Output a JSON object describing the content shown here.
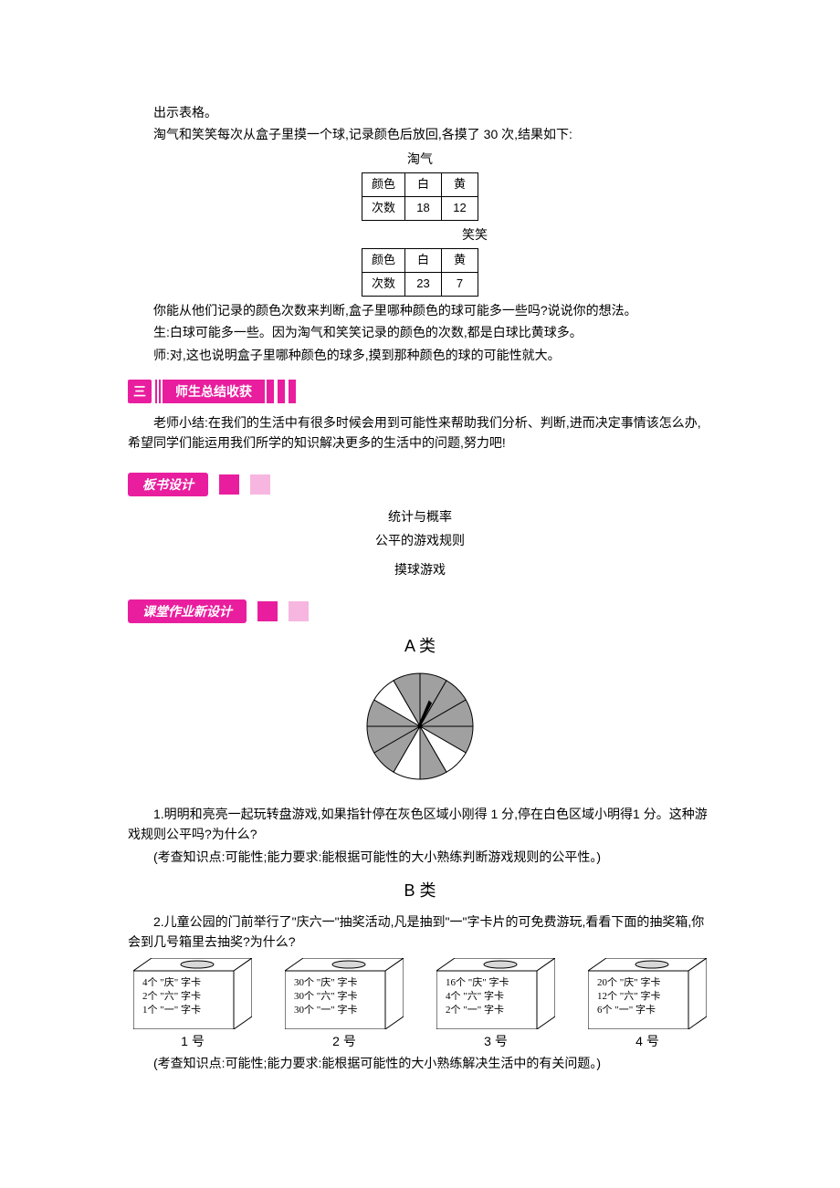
{
  "colors": {
    "accent": "#e91e9e",
    "accent_light": "#f7b6e0",
    "text": "#000000",
    "background": "#ffffff",
    "spinner_gray": "#a0a0a0",
    "spinner_white": "#ffffff",
    "box_fill": "#ffffff",
    "box_stroke": "#000000",
    "box_top_fill": "#d8d8d8"
  },
  "intro": {
    "line1": "出示表格。",
    "line2": "淘气和笑笑每次从盒子里摸一个球,记录颜色后放回,各摸了 30 次,结果如下:"
  },
  "tables": {
    "t1_title": "淘气",
    "t1": {
      "row1": [
        "颜色",
        "白",
        "黄"
      ],
      "row2": [
        "次数",
        "18",
        "12"
      ]
    },
    "t2_title": "笑笑",
    "t2": {
      "row1": [
        "颜色",
        "白",
        "黄"
      ],
      "row2": [
        "次数",
        "23",
        "7"
      ]
    }
  },
  "dialogue": {
    "q": "你能从他们记录的颜色次数来判断,盒子里哪种颜色的球可能多一些吗?说说你的想法。",
    "student": "生:白球可能多一些。因为淘气和笑笑记录的颜色的次数,都是白球比黄球多。",
    "teacher": "师:对,这也说明盒子里哪种颜色的球多,摸到那种颜色的球的可能性就大。"
  },
  "section3": {
    "badge": "三",
    "title": "师生总结收获",
    "body": "老师小结:在我们的生活中有很多时候会用到可能性来帮助我们分析、判断,进而决定事情该怎么办,希望同学们能运用我们所学的知识解决更多的生活中的问题,努力吧!"
  },
  "board": {
    "header": "板书设计",
    "line1": "统计与概率",
    "line2": "公平的游戏规则",
    "line3": "摸球游戏"
  },
  "homework": {
    "header": "课堂作业新设计",
    "catA": "A 类",
    "catB": "B 类"
  },
  "spinner": {
    "type": "pie",
    "slice_count": 12,
    "gray_slices": 9,
    "white_slices": 3,
    "colors": [
      "#a0a0a0",
      "#a0a0a0",
      "#a0a0a0",
      "#a0a0a0",
      "#ffffff",
      "#a0a0a0",
      "#ffffff",
      "#a0a0a0",
      "#a0a0a0",
      "#a0a0a0",
      "#ffffff",
      "#a0a0a0"
    ],
    "stroke": "#000000",
    "radius": 58
  },
  "q1": {
    "text": "1.明明和亮亮一起玩转盘游戏,如果指针停在灰色区域小刚得 1 分,停在白色区域小明得1 分。这种游戏规则公平吗?为什么?",
    "note": "(考查知识点:可能性;能力要求:能根据可能性的大小熟练判断游戏规则的公平性。)"
  },
  "q2": {
    "text": "2.儿童公园的门前举行了\"庆六一\"抽奖活动,凡是抽到\"一\"字卡片的可免费游玩,看看下面的抽奖箱,你会到几号箱里去抽奖?为什么?",
    "note": "(考查知识点:可能性;能力要求:能根据可能性的大小熟练解决生活中的有关问题。)"
  },
  "boxes": [
    {
      "label": "1 号",
      "lines": [
        "4个 \"庆\" 字卡",
        "2个 \"六\" 字卡",
        "1个 \"一\" 字卡"
      ]
    },
    {
      "label": "2 号",
      "lines": [
        "30个 \"庆\" 字卡",
        "30个 \"六\" 字卡",
        "30个 \"一\" 字卡"
      ]
    },
    {
      "label": "3 号",
      "lines": [
        "16个 \"庆\" 字卡",
        "4个 \"六\" 字卡",
        "2个 \"一\" 字卡"
      ]
    },
    {
      "label": "4 号",
      "lines": [
        "20个 \"庆\" 字卡",
        "12个 \"六\" 字卡",
        "6个 \"一\" 字卡"
      ]
    }
  ]
}
